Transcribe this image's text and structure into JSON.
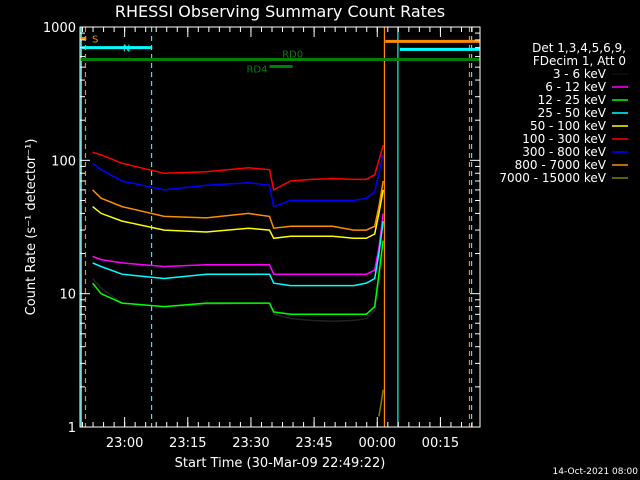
{
  "chart_data": {
    "type": "line",
    "title": "RHESSI Observing Summary Count Rates",
    "xlabel": "Start Time (30-Mar-09 22:49:22)",
    "ylabel": "Count Rate (s⁻¹ detector⁻¹)",
    "yscale": "log",
    "ylim": [
      1,
      1000
    ],
    "y_ticks": [
      {
        "value": 1,
        "label": "1"
      },
      {
        "value": 10,
        "label": "10"
      },
      {
        "value": 100,
        "label": "100"
      },
      {
        "value": 1000,
        "label": "1000"
      }
    ],
    "xlim": [
      0,
      95
    ],
    "x_ticks": [
      {
        "value": 10.6,
        "label": "23:00"
      },
      {
        "value": 25.6,
        "label": "23:15"
      },
      {
        "value": 40.6,
        "label": "23:30"
      },
      {
        "value": 55.6,
        "label": "23:45"
      },
      {
        "value": 70.6,
        "label": "00:00"
      },
      {
        "value": 85.6,
        "label": "00:15"
      }
    ],
    "legend_header": [
      "Det 1,3,4,5,6,9,",
      "FDecim 1, Att 0"
    ],
    "series": [
      {
        "name": "3 - 6 keV",
        "color": "#000000",
        "x": [
          3,
          5,
          10,
          20,
          30,
          45,
          46,
          50,
          55,
          60,
          65,
          68,
          70,
          71,
          72
        ],
        "y": [
          13,
          11,
          8.5,
          8,
          8.3,
          8.5,
          7,
          6.5,
          6.3,
          6.2,
          6.3,
          6.5,
          7.5,
          12,
          20
        ]
      },
      {
        "name": "6 - 12 keV",
        "color": "#ff00ff",
        "x": [
          3,
          5,
          10,
          20,
          30,
          45,
          46,
          50,
          55,
          60,
          65,
          68,
          70,
          71,
          72
        ],
        "y": [
          19,
          18,
          17,
          16,
          16.5,
          16.5,
          14,
          14,
          14,
          14,
          14,
          14,
          15,
          22,
          40
        ]
      },
      {
        "name": "12 - 25 keV",
        "color": "#00ff00",
        "x": [
          3,
          5,
          10,
          20,
          30,
          45,
          46,
          50,
          55,
          60,
          65,
          68,
          70,
          71,
          72
        ],
        "y": [
          12,
          10,
          8.5,
          8,
          8.5,
          8.5,
          7.3,
          7,
          7,
          7,
          7,
          7,
          8,
          14,
          25
        ]
      },
      {
        "name": "25 - 50 keV",
        "color": "#00ffff",
        "x": [
          3,
          5,
          10,
          20,
          30,
          45,
          46,
          50,
          55,
          60,
          65,
          68,
          70,
          71,
          72
        ],
        "y": [
          17,
          16,
          14,
          13,
          14,
          14,
          12,
          11.5,
          11.5,
          11.5,
          11.5,
          12,
          13,
          20,
          35
        ]
      },
      {
        "name": "50 - 100 keV",
        "color": "#ffff00",
        "x": [
          3,
          5,
          10,
          20,
          30,
          40,
          45,
          46,
          50,
          55,
          60,
          65,
          68,
          70,
          71,
          72
        ],
        "y": [
          45,
          40,
          35,
          30,
          29,
          31,
          30,
          26,
          27,
          27,
          27,
          26,
          26,
          28,
          40,
          60
        ]
      },
      {
        "name": "100 - 300 keV",
        "color": "#ff0000",
        "x": [
          3,
          5,
          10,
          20,
          30,
          40,
          45,
          46,
          50,
          55,
          60,
          65,
          68,
          70,
          71,
          72
        ],
        "y": [
          115,
          110,
          95,
          80,
          82,
          88,
          85,
          60,
          70,
          72,
          73,
          72,
          72,
          78,
          100,
          130
        ]
      },
      {
        "name": "300 - 800 keV",
        "color": "#0000ff",
        "x": [
          3,
          5,
          10,
          20,
          30,
          40,
          45,
          46,
          50,
          55,
          60,
          65,
          68,
          70,
          71,
          72
        ],
        "y": [
          95,
          85,
          70,
          60,
          65,
          68,
          65,
          45,
          50,
          50,
          50,
          50,
          52,
          58,
          80,
          110
        ]
      },
      {
        "name": "800 - 7000 keV",
        "color": "#ff8c00",
        "x": [
          3,
          5,
          10,
          20,
          30,
          40,
          45,
          46,
          50,
          55,
          60,
          65,
          68,
          70,
          71,
          72
        ],
        "y": [
          60,
          52,
          45,
          38,
          37,
          40,
          38,
          31,
          32,
          32,
          32,
          30,
          30,
          32,
          45,
          70
        ]
      },
      {
        "name": "7000 - 15000 keV",
        "color": "#808000",
        "x": [
          71,
          71.5,
          72
        ],
        "y": [
          1.2,
          1.5,
          1.9
        ]
      }
    ],
    "vertical_markers": [
      {
        "x": 0.3,
        "color": "#00ffff",
        "dash": "solid"
      },
      {
        "x": 1.3,
        "color": "#ff8c00",
        "dash": "dashed"
      },
      {
        "x": 17,
        "color": "#00ffff",
        "dash": "dashed"
      },
      {
        "x": 72.3,
        "color": "#ff8c00",
        "dash": "solid"
      },
      {
        "x": 75.5,
        "color": "#00ffff",
        "dash": "solid"
      },
      {
        "x": 92.5,
        "color": "#ff8c00",
        "dash": "dashed"
      },
      {
        "x": 93,
        "color": "#00ffff",
        "dash": "dashed"
      }
    ],
    "flag_bars": [
      {
        "label": "S",
        "color": "#ff8c00",
        "x_start": 0,
        "x_end": 1.5,
        "y": 820
      },
      {
        "label": "N",
        "color": "#00ffff",
        "x_start": 0.5,
        "x_end": 17,
        "y": 700
      },
      {
        "label": "",
        "color": "#ff8c00",
        "x_start": 72.5,
        "x_end": 95,
        "y": 780
      },
      {
        "label": "",
        "color": "#00ffff",
        "x_start": 76,
        "x_end": 95,
        "y": 680
      },
      {
        "label": "RD0",
        "color": "#008000",
        "x_start": 0,
        "x_end": 95,
        "y": 570
      },
      {
        "label": "RD4",
        "color": "#008000",
        "x_start": 45,
        "x_end": 50.5,
        "y": 505
      }
    ],
    "grid": false
  },
  "footer_date": "14-Oct-2021 08:00"
}
